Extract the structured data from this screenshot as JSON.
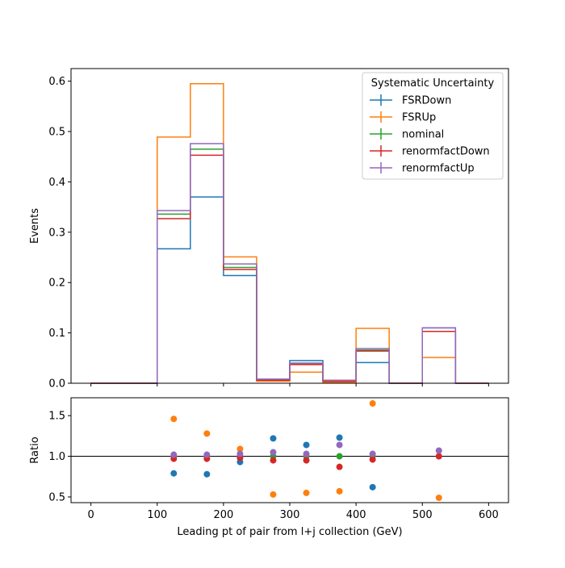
{
  "chart_data": [
    {
      "type": "step",
      "xlabel": "",
      "ylabel": "Events",
      "xlim": [
        -30,
        630
      ],
      "ylim": [
        0,
        0.625
      ],
      "yticks": [
        0.0,
        0.1,
        0.2,
        0.3,
        0.4,
        0.5,
        0.6
      ],
      "ytick_labels": [
        "0.0",
        "0.1",
        "0.2",
        "0.3",
        "0.4",
        "0.5",
        "0.6"
      ],
      "xticks": [
        0,
        100,
        200,
        300,
        400,
        500,
        600
      ],
      "grid": false,
      "legend": {
        "title": "Systematic Uncertainty",
        "placement": "top-right",
        "entries": [
          "FSRDown",
          "FSRUp",
          "nominal",
          "renormfactDown",
          "renormfactUp"
        ]
      },
      "bin_edges": [
        0,
        50,
        100,
        150,
        200,
        250,
        300,
        350,
        400,
        450,
        500,
        550,
        600
      ],
      "series": [
        {
          "name": "FSRDown",
          "color": "#1f77b4",
          "values": [
            0,
            0,
            0.267,
            0.37,
            0.214,
            0.008,
            0.045,
            0.006,
            0.041,
            0,
            0.11,
            0
          ]
        },
        {
          "name": "FSRUp",
          "color": "#ff7f0e",
          "values": [
            0,
            0,
            0.489,
            0.595,
            0.251,
            0.004,
            0.022,
            0.002,
            0.109,
            0,
            0.051,
            0
          ]
        },
        {
          "name": "nominal",
          "color": "#2ca02c",
          "values": [
            0,
            0,
            0.336,
            0.465,
            0.23,
            0.007,
            0.039,
            0.005,
            0.066,
            0,
            0.103,
            0
          ]
        },
        {
          "name": "renormfactDown",
          "color": "#d62728",
          "values": [
            0,
            0,
            0.327,
            0.453,
            0.226,
            0.006,
            0.037,
            0.004,
            0.064,
            0,
            0.103,
            0
          ]
        },
        {
          "name": "renormfactUp",
          "color": "#9467bd",
          "values": [
            0,
            0,
            0.343,
            0.476,
            0.237,
            0.008,
            0.04,
            0.006,
            0.069,
            0,
            0.11,
            0
          ]
        }
      ]
    },
    {
      "type": "scatter",
      "xlabel": "Leading pt of pair from l+j collection (GeV)",
      "ylabel": "Ratio",
      "xlim": [
        -30,
        630
      ],
      "ylim": [
        0.43,
        1.72
      ],
      "yticks": [
        0.5,
        1.0,
        1.5
      ],
      "ytick_labels": [
        "0.5",
        "1.0",
        "1.5"
      ],
      "xticks": [
        0,
        100,
        200,
        300,
        400,
        500,
        600
      ],
      "xtick_labels": [
        "0",
        "100",
        "200",
        "300",
        "400",
        "500",
        "600"
      ],
      "reference_line": 1.0,
      "grid": false,
      "series": [
        {
          "name": "FSRDown",
          "color": "#1f77b4",
          "x": [
            125,
            175,
            225,
            275,
            325,
            375,
            425
          ],
          "y": [
            0.79,
            0.78,
            0.93,
            1.22,
            1.14,
            1.23,
            0.62
          ]
        },
        {
          "name": "FSRUp",
          "color": "#ff7f0e",
          "x": [
            125,
            175,
            225,
            275,
            325,
            375,
            425,
            525
          ],
          "y": [
            1.46,
            1.28,
            1.09,
            0.53,
            0.55,
            0.57,
            1.65,
            0.49
          ]
        },
        {
          "name": "nominal",
          "color": "#2ca02c",
          "x": [
            125,
            175,
            225,
            275,
            325,
            375,
            425,
            525
          ],
          "y": [
            1.0,
            1.0,
            1.0,
            1.0,
            1.0,
            1.0,
            1.0,
            1.0
          ]
        },
        {
          "name": "renormfactDown",
          "color": "#d62728",
          "x": [
            125,
            175,
            225,
            275,
            325,
            375,
            425,
            525
          ],
          "y": [
            0.97,
            0.97,
            0.98,
            0.95,
            0.95,
            0.87,
            0.96,
            1.0
          ]
        },
        {
          "name": "renormfactUp",
          "color": "#9467bd",
          "x": [
            125,
            175,
            225,
            275,
            325,
            375,
            425,
            525
          ],
          "y": [
            1.02,
            1.02,
            1.03,
            1.05,
            1.03,
            1.14,
            1.03,
            1.07
          ]
        }
      ]
    }
  ]
}
